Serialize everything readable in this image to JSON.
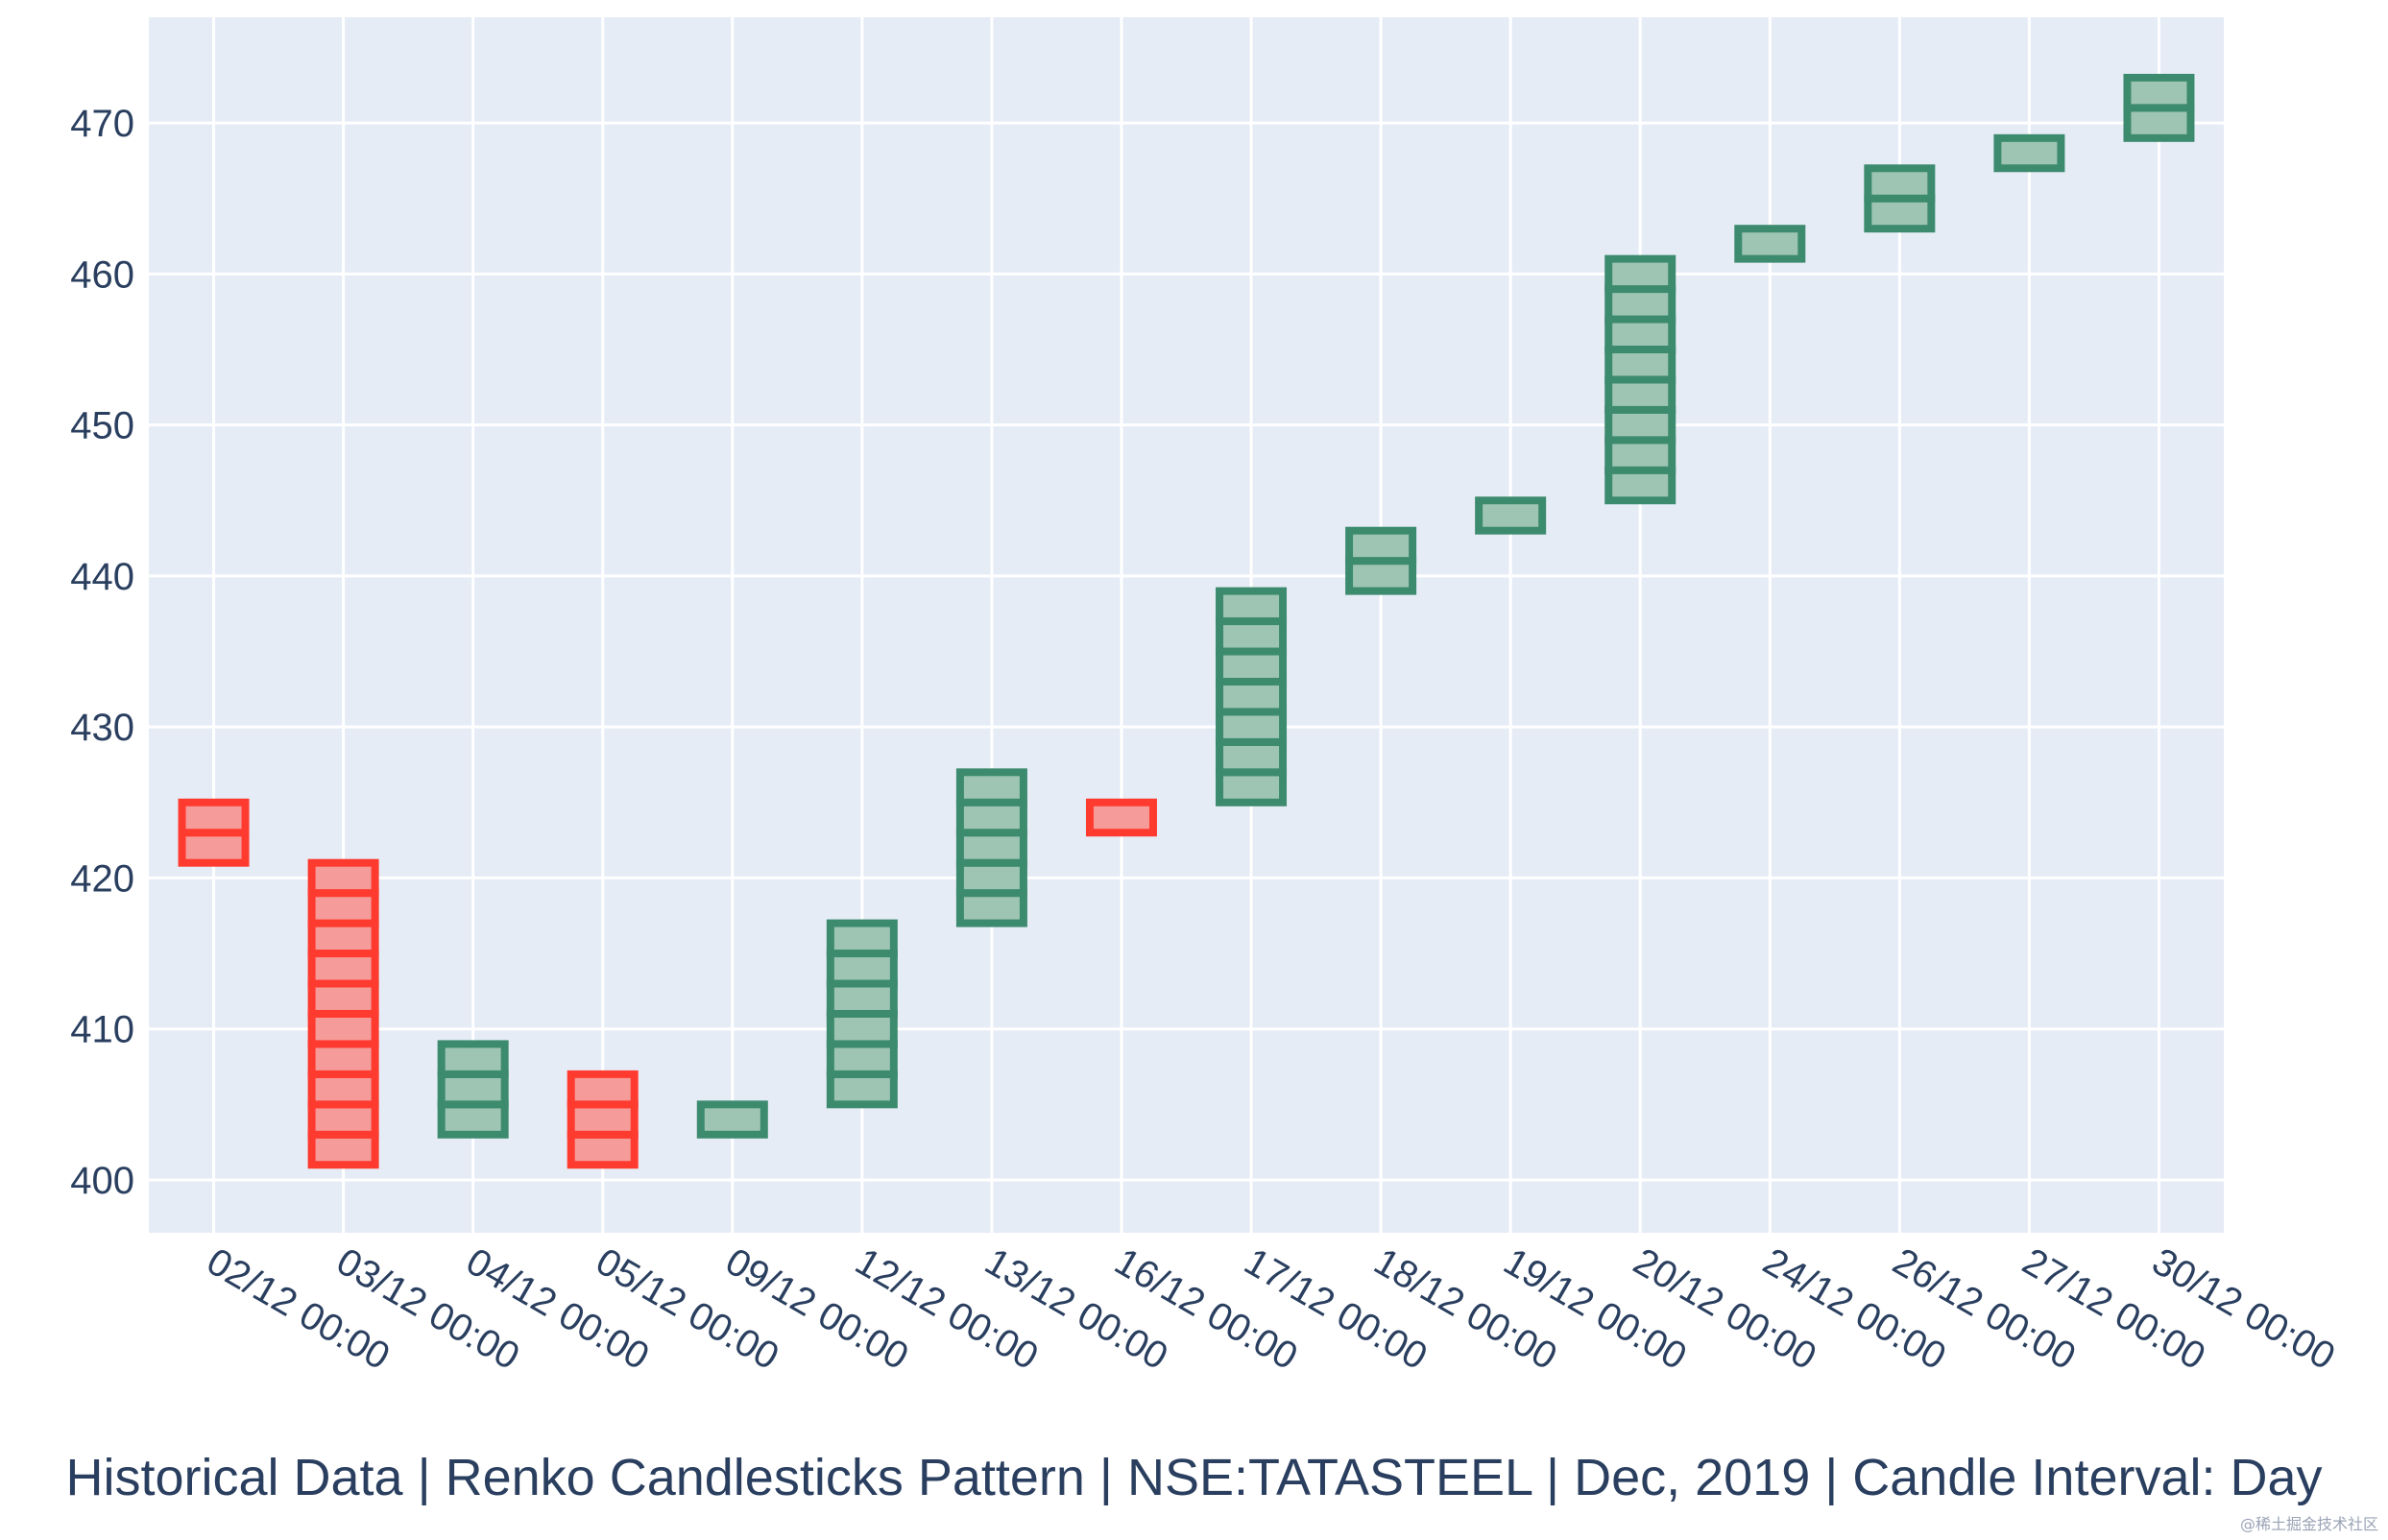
{
  "chart_data": {
    "type": "renko",
    "title": "Historical Data | Renko Candlesticks Pattern | NSE:TATASTEEL | Dec, 2019 | Candle Interval: Day",
    "xlabel": "",
    "ylabel": "",
    "ylim": [
      396.5,
      477
    ],
    "yticks": [
      400,
      410,
      420,
      430,
      440,
      450,
      460,
      470
    ],
    "brick_size": 2,
    "grid": true,
    "colors": {
      "up_line": "#3d8b6e",
      "up_fill": "#9ec5b4",
      "down_line": "#ff3b30",
      "down_fill": "#f59c9b",
      "plot_bg": "#e5ecf6",
      "grid": "#ffffff",
      "text": "#2a3f5f"
    },
    "candles": [
      {
        "date": "02/12 00:00",
        "direction": "down",
        "low": 421,
        "high": 425
      },
      {
        "date": "03/12 00:00",
        "direction": "down",
        "low": 401,
        "high": 421
      },
      {
        "date": "04/12 00:00",
        "direction": "up",
        "low": 403,
        "high": 409
      },
      {
        "date": "05/12 00:00",
        "direction": "down",
        "low": 401,
        "high": 407
      },
      {
        "date": "09/12 00:00",
        "direction": "up",
        "low": 403,
        "high": 405
      },
      {
        "date": "12/12 00:00",
        "direction": "up",
        "low": 405,
        "high": 417
      },
      {
        "date": "13/12 00:00",
        "direction": "up",
        "low": 417,
        "high": 427
      },
      {
        "date": "16/12 00:00",
        "direction": "down",
        "low": 423,
        "high": 425
      },
      {
        "date": "17/12 00:00",
        "direction": "up",
        "low": 425,
        "high": 439
      },
      {
        "date": "18/12 00:00",
        "direction": "up",
        "low": 439,
        "high": 443
      },
      {
        "date": "19/12 00:00",
        "direction": "up",
        "low": 443,
        "high": 445
      },
      {
        "date": "20/12 00:00",
        "direction": "up",
        "low": 445,
        "high": 461
      },
      {
        "date": "24/12 00:00",
        "direction": "up",
        "low": 461,
        "high": 463
      },
      {
        "date": "26/12 00:00",
        "direction": "up",
        "low": 463,
        "high": 467
      },
      {
        "date": "27/12 00:00",
        "direction": "up",
        "low": 467,
        "high": 469
      },
      {
        "date": "30/12 00:00",
        "direction": "up",
        "low": 469,
        "high": 473
      }
    ]
  },
  "watermark": "@稀土掘金技术社区"
}
